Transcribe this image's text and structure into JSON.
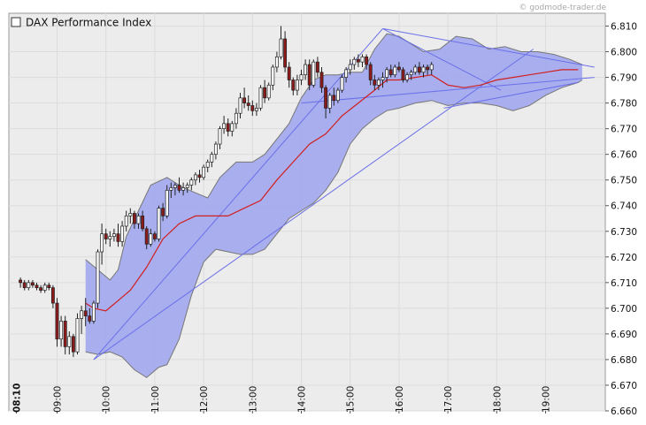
{
  "watermark": "© godmode-trader.de",
  "chart_data": {
    "type": "candlestick",
    "title": "DAX Performance Index",
    "ylim": [
      6660,
      6815
    ],
    "y_ticks": [
      6660,
      6670,
      6680,
      6690,
      6700,
      6710,
      6720,
      6730,
      6740,
      6750,
      6760,
      6770,
      6780,
      6790,
      6800,
      6810
    ],
    "y_tick_labels": [
      "6.660",
      "6.670",
      "6.680",
      "6.690",
      "6.700",
      "6.710",
      "6.720",
      "6.730",
      "6.740",
      "6.750",
      "6.760",
      "6.770",
      "6.780",
      "6.790",
      "6.800",
      "6.810"
    ],
    "x_range": [
      "08:10",
      "20:15"
    ],
    "x_ticks": [
      {
        "time": "08:10",
        "label": "08:10",
        "bold": true
      },
      {
        "time": "09:00",
        "label": "09:00"
      },
      {
        "time": "10:00",
        "label": "10:00"
      },
      {
        "time": "11:00",
        "label": "11:00"
      },
      {
        "time": "12:00",
        "label": "12:00"
      },
      {
        "time": "13:00",
        "label": "13:00"
      },
      {
        "time": "14:00",
        "label": "14:00"
      },
      {
        "time": "15:00",
        "label": "15:00"
      },
      {
        "time": "16:00",
        "label": "16:00"
      },
      {
        "time": "17:00",
        "label": "17:00"
      },
      {
        "time": "18:00",
        "label": "18:00"
      },
      {
        "time": "19:00",
        "label": "19:00"
      }
    ],
    "grid": true,
    "colors": {
      "up": "#ffffff",
      "down": "#8b1a1a",
      "band_fill": "#9da3ee",
      "band_edge": "#777777",
      "ma": "#d02020",
      "trendline": "#6a70e8",
      "grid": "#dcdcdc",
      "plot_bg": "#ececec",
      "bar_shadow": "#555555"
    },
    "bars_5min": [
      [
        6711,
        6712,
        6708,
        6710
      ],
      [
        6710,
        6711,
        6707,
        6708
      ],
      [
        6708,
        6711,
        6707,
        6710
      ],
      [
        6710,
        6711,
        6708,
        6709
      ],
      [
        6709,
        6710,
        6707,
        6708
      ],
      [
        6708,
        6709,
        6706,
        6707
      ],
      [
        6707,
        6710,
        6706,
        6709
      ],
      [
        6709,
        6710,
        6707,
        6708
      ],
      [
        6708,
        6709,
        6700,
        6702
      ],
      [
        6702,
        6704,
        6685,
        6688
      ],
      [
        6688,
        6697,
        6685,
        6695
      ],
      [
        6695,
        6697,
        6682,
        6685
      ],
      [
        6685,
        6691,
        6682,
        6689
      ],
      [
        6689,
        6690,
        6681,
        6683
      ],
      [
        6683,
        6698,
        6682,
        6696
      ],
      [
        6696,
        6701,
        6690,
        6699
      ],
      [
        6699,
        6704,
        6693,
        6697
      ],
      [
        6697,
        6700,
        6694,
        6695
      ],
      [
        6695,
        6703,
        6694,
        6702
      ],
      [
        6702,
        6723,
        6700,
        6722
      ],
      [
        6722,
        6733,
        6717,
        6729
      ],
      [
        6729,
        6731,
        6725,
        6727
      ],
      [
        6727,
        6730,
        6724,
        6728
      ],
      [
        6728,
        6731,
        6726,
        6729
      ],
      [
        6729,
        6733,
        6724,
        6726
      ],
      [
        6726,
        6734,
        6724,
        6732
      ],
      [
        6732,
        6738,
        6730,
        6736
      ],
      [
        6736,
        6739,
        6733,
        6737
      ],
      [
        6737,
        6738,
        6731,
        6733
      ],
      [
        6733,
        6737,
        6731,
        6736
      ],
      [
        6736,
        6738,
        6730,
        6731
      ],
      [
        6731,
        6732,
        6723,
        6725
      ],
      [
        6725,
        6731,
        6724,
        6729
      ],
      [
        6729,
        6730,
        6726,
        6727
      ],
      [
        6727,
        6740,
        6726,
        6739
      ],
      [
        6739,
        6741,
        6734,
        6736
      ],
      [
        6736,
        6748,
        6735,
        6746
      ],
      [
        6746,
        6749,
        6743,
        6747
      ],
      [
        6747,
        6749,
        6744,
        6748
      ],
      [
        6748,
        6751,
        6745,
        6746
      ],
      [
        6746,
        6749,
        6744,
        6747
      ],
      [
        6747,
        6749,
        6745,
        6748
      ],
      [
        6748,
        6751,
        6746,
        6750
      ],
      [
        6750,
        6753,
        6748,
        6752
      ],
      [
        6752,
        6754,
        6749,
        6751
      ],
      [
        6751,
        6756,
        6750,
        6755
      ],
      [
        6755,
        6758,
        6753,
        6757
      ],
      [
        6757,
        6761,
        6755,
        6760
      ],
      [
        6760,
        6765,
        6758,
        6764
      ],
      [
        6764,
        6771,
        6762,
        6770
      ],
      [
        6770,
        6775,
        6768,
        6772
      ],
      [
        6772,
        6774,
        6767,
        6769
      ],
      [
        6769,
        6773,
        6767,
        6772
      ],
      [
        6772,
        6778,
        6770,
        6776
      ],
      [
        6776,
        6784,
        6774,
        6782
      ],
      [
        6782,
        6786,
        6778,
        6780
      ],
      [
        6780,
        6783,
        6777,
        6779
      ],
      [
        6779,
        6781,
        6775,
        6777
      ],
      [
        6777,
        6780,
        6775,
        6778
      ],
      [
        6778,
        6787,
        6777,
        6786
      ],
      [
        6786,
        6789,
        6780,
        6782
      ],
      [
        6782,
        6788,
        6781,
        6787
      ],
      [
        6787,
        6795,
        6785,
        6794
      ],
      [
        6794,
        6800,
        6792,
        6798
      ],
      [
        6798,
        6810,
        6797,
        6805
      ],
      [
        6805,
        6808,
        6792,
        6794
      ],
      [
        6794,
        6796,
        6786,
        6789
      ],
      [
        6789,
        6790,
        6783,
        6785
      ],
      [
        6785,
        6791,
        6783,
        6789
      ],
      [
        6789,
        6793,
        6787,
        6791
      ],
      [
        6791,
        6797,
        6789,
        6795
      ],
      [
        6795,
        6797,
        6785,
        6787
      ],
      [
        6787,
        6797,
        6786,
        6796
      ],
      [
        6796,
        6798,
        6790,
        6792
      ],
      [
        6792,
        6794,
        6784,
        6786
      ],
      [
        6786,
        6787,
        6774,
        6778
      ],
      [
        6778,
        6784,
        6776,
        6783
      ],
      [
        6783,
        6786,
        6779,
        6781
      ],
      [
        6781,
        6786,
        6780,
        6785
      ],
      [
        6785,
        6791,
        6784,
        6790
      ],
      [
        6790,
        6794,
        6788,
        6793
      ],
      [
        6793,
        6797,
        6791,
        6795
      ],
      [
        6795,
        6798,
        6793,
        6797
      ],
      [
        6797,
        6799,
        6794,
        6796
      ],
      [
        6796,
        6799,
        6794,
        6798
      ],
      [
        6798,
        6799,
        6793,
        6795
      ],
      [
        6795,
        6796,
        6787,
        6789
      ],
      [
        6789,
        6791,
        6785,
        6787
      ],
      [
        6787,
        6790,
        6785,
        6789
      ],
      [
        6789,
        6792,
        6786,
        6790
      ],
      [
        6790,
        6794,
        6788,
        6793
      ],
      [
        6793,
        6795,
        6790,
        6791
      ],
      [
        6791,
        6795,
        6790,
        6794
      ],
      [
        6794,
        6796,
        6792,
        6793
      ],
      [
        6793,
        6794,
        6788,
        6789
      ],
      [
        6789,
        6792,
        6788,
        6791
      ],
      [
        6791,
        6793,
        6789,
        6792
      ],
      [
        6792,
        6795,
        6791,
        6794
      ],
      [
        6794,
        6796,
        6791,
        6792
      ],
      [
        6792,
        6795,
        6790,
        6794
      ],
      [
        6794,
        6795,
        6791,
        6793
      ],
      [
        6793,
        6796,
        6791,
        6795
      ]
    ],
    "moving_average": [
      [
        "09:35",
        6702
      ],
      [
        "09:45",
        6700
      ],
      [
        "10:00",
        6699
      ],
      [
        "10:15",
        6703
      ],
      [
        "10:30",
        6707
      ],
      [
        "10:50",
        6716
      ],
      [
        "11:10",
        6727
      ],
      [
        "11:30",
        6733
      ],
      [
        "11:50",
        6736
      ],
      [
        "12:10",
        6736
      ],
      [
        "12:30",
        6736
      ],
      [
        "12:50",
        6739
      ],
      [
        "13:10",
        6742
      ],
      [
        "13:30",
        6750
      ],
      [
        "13:50",
        6757
      ],
      [
        "14:10",
        6764
      ],
      [
        "14:30",
        6768
      ],
      [
        "14:50",
        6775
      ],
      [
        "15:10",
        6780
      ],
      [
        "15:30",
        6785
      ],
      [
        "15:45",
        6789
      ],
      [
        "16:00",
        6789
      ],
      [
        "16:20",
        6790
      ],
      [
        "16:40",
        6791
      ],
      [
        "17:00",
        6787
      ],
      [
        "17:20",
        6786
      ],
      [
        "17:40",
        6787
      ],
      [
        "18:00",
        6789
      ],
      [
        "18:20",
        6790
      ],
      [
        "18:40",
        6791
      ],
      [
        "19:00",
        6792
      ],
      [
        "19:20",
        6793
      ],
      [
        "19:40",
        6793
      ]
    ],
    "bollinger_upper": [
      [
        "09:35",
        6719
      ],
      [
        "09:50",
        6715
      ],
      [
        "10:05",
        6711
      ],
      [
        "10:15",
        6715
      ],
      [
        "10:25",
        6728
      ],
      [
        "10:40",
        6738
      ],
      [
        "10:55",
        6748
      ],
      [
        "11:15",
        6751
      ],
      [
        "11:35",
        6747
      ],
      [
        "11:50",
        6745
      ],
      [
        "12:05",
        6743
      ],
      [
        "12:20",
        6751
      ],
      [
        "12:40",
        6757
      ],
      [
        "13:00",
        6757
      ],
      [
        "13:15",
        6760
      ],
      [
        "13:30",
        6766
      ],
      [
        "13:45",
        6772
      ],
      [
        "14:00",
        6782
      ],
      [
        "14:15",
        6789
      ],
      [
        "14:30",
        6791
      ],
      [
        "14:45",
        6791
      ],
      [
        "15:00",
        6792
      ],
      [
        "15:15",
        6792
      ],
      [
        "15:30",
        6801
      ],
      [
        "15:45",
        6807
      ],
      [
        "16:00",
        6806
      ],
      [
        "16:15",
        6803
      ],
      [
        "16:30",
        6800
      ],
      [
        "16:50",
        6801
      ],
      [
        "17:10",
        6806
      ],
      [
        "17:30",
        6805
      ],
      [
        "17:50",
        6801
      ],
      [
        "18:10",
        6802
      ],
      [
        "18:30",
        6800
      ],
      [
        "18:50",
        6800
      ],
      [
        "19:10",
        6799
      ],
      [
        "19:30",
        6797
      ],
      [
        "19:45",
        6795
      ]
    ],
    "bollinger_lower": [
      [
        "09:35",
        6683
      ],
      [
        "09:50",
        6682
      ],
      [
        "10:05",
        6683
      ],
      [
        "10:20",
        6681
      ],
      [
        "10:35",
        6676
      ],
      [
        "10:50",
        6673
      ],
      [
        "11:05",
        6677
      ],
      [
        "11:15",
        6678
      ],
      [
        "11:30",
        6688
      ],
      [
        "11:45",
        6705
      ],
      [
        "12:00",
        6718
      ],
      [
        "12:15",
        6723
      ],
      [
        "12:30",
        6722
      ],
      [
        "12:45",
        6721
      ],
      [
        "13:00",
        6721
      ],
      [
        "13:15",
        6723
      ],
      [
        "13:30",
        6729
      ],
      [
        "13:45",
        6735
      ],
      [
        "14:00",
        6738
      ],
      [
        "14:15",
        6741
      ],
      [
        "14:30",
        6746
      ],
      [
        "14:45",
        6753
      ],
      [
        "15:00",
        6764
      ],
      [
        "15:15",
        6770
      ],
      [
        "15:30",
        6774
      ],
      [
        "15:45",
        6777
      ],
      [
        "16:00",
        6778
      ],
      [
        "16:20",
        6780
      ],
      [
        "16:40",
        6781
      ],
      [
        "17:00",
        6779
      ],
      [
        "17:20",
        6780
      ],
      [
        "17:40",
        6780
      ],
      [
        "18:00",
        6779
      ],
      [
        "18:20",
        6777
      ],
      [
        "18:40",
        6779
      ],
      [
        "19:00",
        6783
      ],
      [
        "19:20",
        6786
      ],
      [
        "19:40",
        6788
      ],
      [
        "19:45",
        6789
      ]
    ],
    "trendlines": [
      [
        [
          "09:45",
          6680
        ],
        [
          "15:40",
          6809
        ]
      ],
      [
        [
          "09:45",
          6680
        ],
        [
          "18:45",
          6801
        ]
      ],
      [
        [
          "15:40",
          6809
        ],
        [
          "20:00",
          6794
        ]
      ],
      [
        [
          "15:40",
          6809
        ],
        [
          "18:05",
          6785
        ]
      ],
      [
        [
          "14:00",
          6780
        ],
        [
          "20:00",
          6790
        ]
      ],
      [
        [
          "19:40",
          6788
        ],
        [
          "16:55",
          6778
        ]
      ]
    ]
  }
}
